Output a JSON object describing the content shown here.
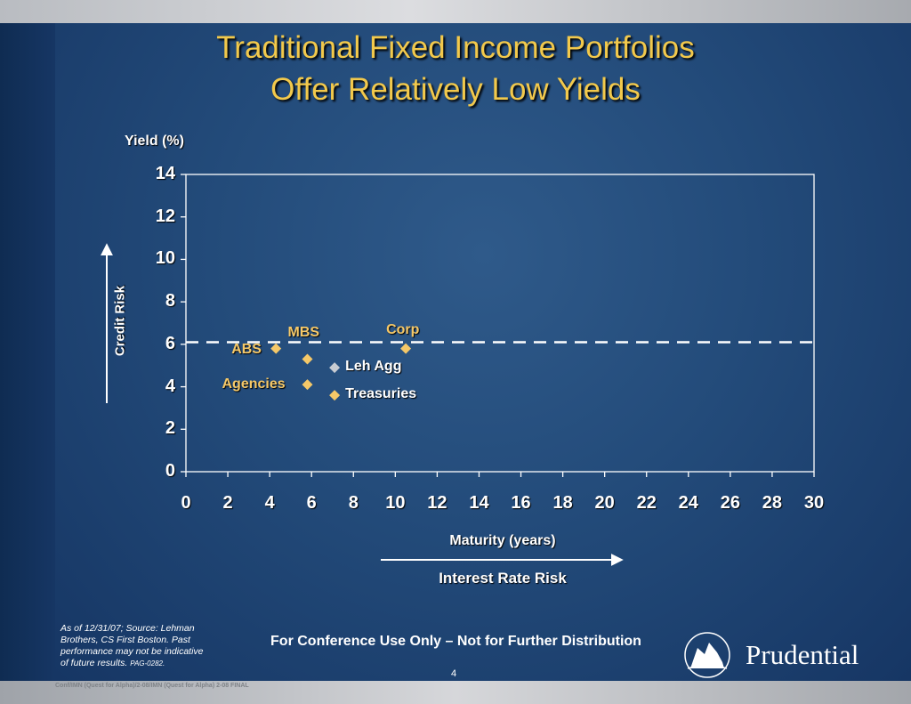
{
  "slide": {
    "title_line1": "Traditional Fixed Income Portfolios",
    "title_line2": "Offer Relatively Low Yields",
    "y_axis_title": "Yield (%)",
    "x_axis_title": "Maturity (years)",
    "vertical_arrow_label": "Credit Risk",
    "horizontal_arrow_label": "Interest Rate Risk",
    "source_note": "As of 12/31/07; Source: Lehman Brothers, CS First Boston. Past performance may not be indicative of future results.",
    "source_code": "PAG-0282.",
    "conference_notice": "For Conference Use Only – Not for Further Distribution",
    "page_number": "4",
    "footer_path": "Conf/IMN (Quest for Alpha)/2-08/IMN (Quest for Alpha) 2-08 FINAL",
    "brand_name": "Prudential"
  },
  "colors": {
    "title": "#f2c94c",
    "point": "#f5c868",
    "point_label": "#f5c868",
    "leh_agg_point": "#c8ccd2",
    "leh_agg_label": "#ffffff",
    "treasuries_label": "#ffffff",
    "dashed_line": "#ffffff"
  },
  "chart_data": {
    "type": "scatter",
    "xlabel": "Maturity (years)",
    "ylabel": "Yield (%)",
    "xlim": [
      0,
      30
    ],
    "ylim": [
      0,
      14
    ],
    "x_ticks": [
      0,
      2,
      4,
      6,
      8,
      10,
      12,
      14,
      16,
      18,
      20,
      22,
      24,
      26,
      28,
      30
    ],
    "y_ticks": [
      0,
      2,
      4,
      6,
      8,
      10,
      12,
      14
    ],
    "grid": false,
    "reference_line_y": 6.1,
    "points": [
      {
        "label": "ABS",
        "x": 4.3,
        "y": 5.8
      },
      {
        "label": "MBS",
        "x": 5.8,
        "y": 5.3
      },
      {
        "label": "Agencies",
        "x": 5.8,
        "y": 4.1
      },
      {
        "label": "Leh Agg",
        "x": 7.1,
        "y": 4.9
      },
      {
        "label": "Treasuries",
        "x": 7.1,
        "y": 3.6
      },
      {
        "label": "Corp",
        "x": 10.5,
        "y": 5.8
      }
    ]
  }
}
